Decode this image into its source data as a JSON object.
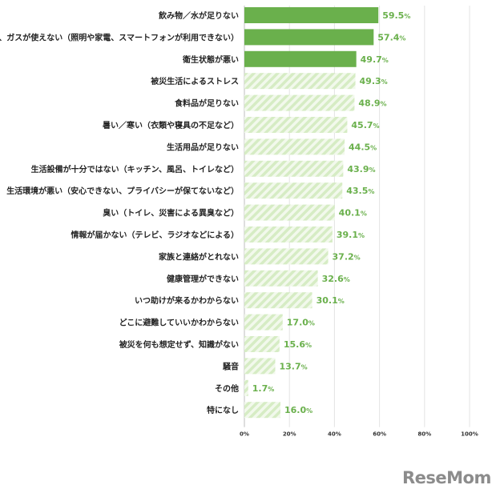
{
  "chart_data": {
    "type": "bar",
    "orientation": "horizontal",
    "categories": [
      "飲み物／水が足りない",
      "電気、ガスが使えない（照明や家電、スマートフォンが利用できない）",
      "衛生状態が悪い",
      "被災生活によるストレス",
      "食料品が足りない",
      "暑い／寒い（衣類や寝具の不足など）",
      "生活用品が足りない",
      "生活設備が十分ではない（キッチン、風呂、トイレなど）",
      "生活環境が悪い（安心できない、プライバシーが保てないなど）",
      "臭い（トイレ、災害による異臭など）",
      "情報が届かない（テレビ、ラジオなどによる）",
      "家族と連絡がとれない",
      "健康管理ができない",
      "いつ助けが来るかわからない",
      "どこに避難していいかわからない",
      "被災を何も想定せず、知識がない",
      "騒音",
      "その他",
      "特になし"
    ],
    "values": [
      59.5,
      57.4,
      49.7,
      49.3,
      48.9,
      45.7,
      44.5,
      43.9,
      43.5,
      40.1,
      39.1,
      37.2,
      32.6,
      30.1,
      17.0,
      15.6,
      13.7,
      1.7,
      16.0
    ],
    "highlight_count": 3,
    "value_unit": "%",
    "xlim": [
      0,
      100
    ],
    "xticks": [
      "0%",
      "20%",
      "40%",
      "60%",
      "80%",
      "100%"
    ],
    "colors": {
      "highlight": "#6ab04c",
      "stripe": "#d6ecc4",
      "stripe_bg": "#f2f9ec",
      "value_text": "#6ab04c"
    }
  },
  "watermark": {
    "text": "ReseMom"
  }
}
